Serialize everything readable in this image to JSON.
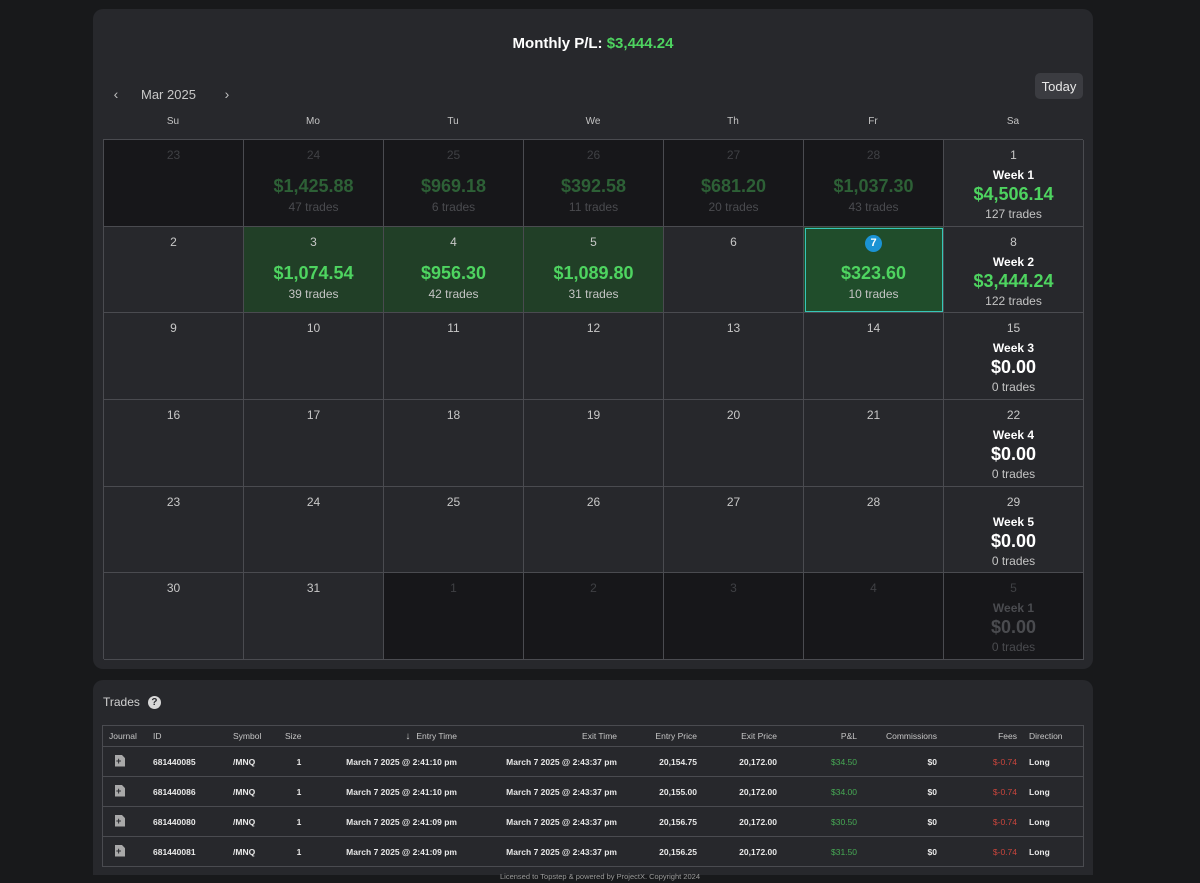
{
  "header": {
    "monthly_label": "Monthly P/L:",
    "monthly_value": "$3,444.24"
  },
  "nav": {
    "month": "Mar 2025",
    "prev": "‹",
    "next": "›",
    "today": "Today"
  },
  "days_of_week": [
    "Su",
    "Mo",
    "Tu",
    "We",
    "Th",
    "Fr",
    "Sa"
  ],
  "calendar": {
    "rows": [
      [
        {
          "num": "23",
          "outside": true
        },
        {
          "num": "24",
          "outside": true,
          "amount": "$1,425.88",
          "trades": "47 trades"
        },
        {
          "num": "25",
          "outside": true,
          "amount": "$969.18",
          "trades": "6 trades"
        },
        {
          "num": "26",
          "outside": true,
          "amount": "$392.58",
          "trades": "11 trades"
        },
        {
          "num": "27",
          "outside": true,
          "amount": "$681.20",
          "trades": "20 trades"
        },
        {
          "num": "28",
          "outside": true,
          "amount": "$1,037.30",
          "trades": "43 trades"
        },
        {
          "num": "1",
          "week": "Week 1",
          "amount": "$4,506.14",
          "trades": "127 trades"
        }
      ],
      [
        {
          "num": "2"
        },
        {
          "num": "3",
          "green": true,
          "amount": "$1,074.54",
          "trades": "39 trades"
        },
        {
          "num": "4",
          "green": true,
          "amount": "$956.30",
          "trades": "42 trades"
        },
        {
          "num": "5",
          "green": true,
          "amount": "$1,089.80",
          "trades": "31 trades"
        },
        {
          "num": "6"
        },
        {
          "num": "7",
          "today": true,
          "amount": "$323.60",
          "trades": "10 trades"
        },
        {
          "num": "8",
          "week": "Week 2",
          "amount": "$3,444.24",
          "trades": "122 trades"
        }
      ],
      [
        {
          "num": "9"
        },
        {
          "num": "10"
        },
        {
          "num": "11"
        },
        {
          "num": "12"
        },
        {
          "num": "13"
        },
        {
          "num": "14"
        },
        {
          "num": "15",
          "week": "Week 3",
          "amount": "$0.00",
          "trades": "0 trades",
          "zero": true
        }
      ],
      [
        {
          "num": "16"
        },
        {
          "num": "17"
        },
        {
          "num": "18"
        },
        {
          "num": "19"
        },
        {
          "num": "20"
        },
        {
          "num": "21"
        },
        {
          "num": "22",
          "week": "Week 4",
          "amount": "$0.00",
          "trades": "0 trades",
          "zero": true
        }
      ],
      [
        {
          "num": "23"
        },
        {
          "num": "24"
        },
        {
          "num": "25"
        },
        {
          "num": "26"
        },
        {
          "num": "27"
        },
        {
          "num": "28"
        },
        {
          "num": "29",
          "week": "Week 5",
          "amount": "$0.00",
          "trades": "0 trades",
          "zero": true
        }
      ],
      [
        {
          "num": "30"
        },
        {
          "num": "31"
        },
        {
          "num": "1",
          "outside": true
        },
        {
          "num": "2",
          "outside": true
        },
        {
          "num": "3",
          "outside": true
        },
        {
          "num": "4",
          "outside": true
        },
        {
          "num": "5",
          "outside": true,
          "week": "Week 1",
          "amount": "$0.00",
          "trades": "0 trades",
          "zero": true
        }
      ]
    ]
  },
  "trades": {
    "title": "Trades",
    "help": "?",
    "columns": [
      "Journal",
      "ID",
      "Symbol",
      "Size",
      "Entry Time",
      "Exit Time",
      "Entry Price",
      "Exit Price",
      "P&L",
      "Commissions",
      "Fees",
      "Direction"
    ],
    "sort_icon": "↓",
    "rows": [
      {
        "id": "681440085",
        "symbol": "/MNQ",
        "size": "1",
        "entry_time": "March 7 2025 @ 2:41:10 pm",
        "exit_time": "March 7 2025 @ 2:43:37 pm",
        "entry_price": "20,154.75",
        "exit_price": "20,172.00",
        "pnl": "$34.50",
        "commissions": "$0",
        "fees": "$-0.74",
        "direction": "Long"
      },
      {
        "id": "681440086",
        "symbol": "/MNQ",
        "size": "1",
        "entry_time": "March 7 2025 @ 2:41:10 pm",
        "exit_time": "March 7 2025 @ 2:43:37 pm",
        "entry_price": "20,155.00",
        "exit_price": "20,172.00",
        "pnl": "$34.00",
        "commissions": "$0",
        "fees": "$-0.74",
        "direction": "Long"
      },
      {
        "id": "681440080",
        "symbol": "/MNQ",
        "size": "1",
        "entry_time": "March 7 2025 @ 2:41:09 pm",
        "exit_time": "March 7 2025 @ 2:43:37 pm",
        "entry_price": "20,156.75",
        "exit_price": "20,172.00",
        "pnl": "$30.50",
        "commissions": "$0",
        "fees": "$-0.74",
        "direction": "Long"
      },
      {
        "id": "681440081",
        "symbol": "/MNQ",
        "size": "1",
        "entry_time": "March 7 2025 @ 2:41:09 pm",
        "exit_time": "March 7 2025 @ 2:43:37 pm",
        "entry_price": "20,156.25",
        "exit_price": "20,172.00",
        "pnl": "$31.50",
        "commissions": "$0",
        "fees": "$-0.74",
        "direction": "Long"
      }
    ]
  },
  "footer": {
    "text": "Licensed to Topstep & powered by ProjectX. Copyright 2024"
  },
  "colors": {
    "profit": "#4ed460",
    "loss": "#c9453c",
    "today_badge": "#1b93d4",
    "background": "#18191b",
    "panel": "#27282c"
  }
}
